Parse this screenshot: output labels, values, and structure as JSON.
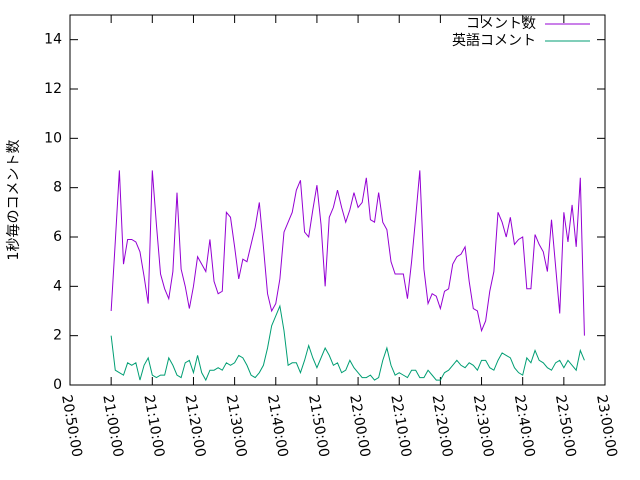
{
  "chart_data": {
    "type": "line",
    "y_label": "1秒毎のコメント数",
    "xlim": [
      "20:50:00",
      "23:00:00"
    ],
    "xticks": [
      "20:50:00",
      "21:00:00",
      "21:10:00",
      "21:20:00",
      "21:30:00",
      "21:40:00",
      "21:50:00",
      "22:00:00",
      "22:10:00",
      "22:20:00",
      "22:30:00",
      "22:40:00",
      "22:50:00",
      "23:00:00"
    ],
    "x_step_seconds": 60,
    "x_start": "21:00:00",
    "ylim": [
      0,
      15
    ],
    "yticks": [
      0,
      2,
      4,
      6,
      8,
      10,
      12,
      14
    ],
    "legend": "top-right",
    "series": [
      {
        "name": "コメント数",
        "color": "#9400d3",
        "values": [
          3.0,
          5.8,
          8.7,
          4.9,
          5.9,
          5.9,
          5.8,
          5.4,
          4.4,
          3.3,
          8.7,
          6.5,
          4.5,
          3.9,
          3.5,
          4.6,
          7.8,
          4.7,
          4.0,
          3.1,
          4.0,
          5.2,
          4.9,
          4.6,
          5.9,
          4.2,
          3.7,
          3.8,
          7.0,
          6.8,
          5.6,
          4.3,
          5.1,
          5.0,
          5.7,
          6.4,
          7.4,
          5.6,
          3.7,
          3.0,
          3.3,
          4.3,
          6.2,
          6.6,
          7.0,
          7.9,
          8.3,
          6.2,
          6.0,
          7.1,
          8.1,
          6.5,
          4.0,
          6.8,
          7.2,
          7.9,
          7.2,
          6.6,
          7.1,
          7.8,
          7.2,
          7.4,
          8.4,
          6.7,
          6.6,
          7.8,
          6.6,
          6.3,
          5.0,
          4.5,
          4.5,
          4.5,
          3.5,
          5.0,
          6.8,
          8.7,
          4.7,
          3.3,
          3.7,
          3.6,
          3.1,
          3.8,
          3.9,
          4.9,
          5.2,
          5.3,
          5.6,
          4.2,
          3.1,
          3.0,
          2.2,
          2.6,
          3.8,
          4.6,
          7.0,
          6.6,
          6.0,
          6.8,
          5.7,
          5.9,
          6.0,
          3.9,
          3.9,
          6.1,
          5.7,
          5.4,
          4.6,
          6.7,
          4.8,
          2.9,
          7.0,
          5.8,
          7.3,
          5.6,
          8.4,
          2.0
        ]
      },
      {
        "name": "英語コメント",
        "color": "#009e73",
        "values": [
          2.0,
          0.6,
          0.5,
          0.4,
          0.9,
          0.8,
          0.9,
          0.2,
          0.8,
          1.1,
          0.4,
          0.3,
          0.4,
          0.4,
          1.1,
          0.8,
          0.4,
          0.3,
          0.9,
          1.0,
          0.5,
          1.2,
          0.5,
          0.2,
          0.6,
          0.6,
          0.7,
          0.6,
          0.9,
          0.8,
          0.9,
          1.2,
          1.1,
          0.8,
          0.4,
          0.3,
          0.5,
          0.8,
          1.5,
          2.4,
          2.8,
          3.2,
          2.2,
          0.8,
          0.9,
          0.9,
          0.5,
          1.0,
          1.6,
          1.1,
          0.7,
          1.1,
          1.5,
          1.2,
          0.8,
          0.9,
          0.5,
          0.6,
          1.0,
          0.7,
          0.5,
          0.3,
          0.3,
          0.4,
          0.2,
          0.3,
          1.0,
          1.5,
          0.8,
          0.4,
          0.5,
          0.4,
          0.3,
          0.6,
          0.6,
          0.3,
          0.3,
          0.6,
          0.4,
          0.2,
          0.2,
          0.5,
          0.6,
          0.8,
          1.0,
          0.8,
          0.7,
          0.9,
          0.8,
          0.6,
          1.0,
          1.0,
          0.7,
          0.6,
          1.0,
          1.3,
          1.2,
          1.1,
          0.7,
          0.5,
          0.4,
          1.1,
          0.9,
          1.4,
          1.0,
          0.9,
          0.7,
          0.6,
          0.9,
          1.0,
          0.7,
          1.0,
          0.8,
          0.6,
          1.4,
          1.0
        ]
      }
    ]
  }
}
